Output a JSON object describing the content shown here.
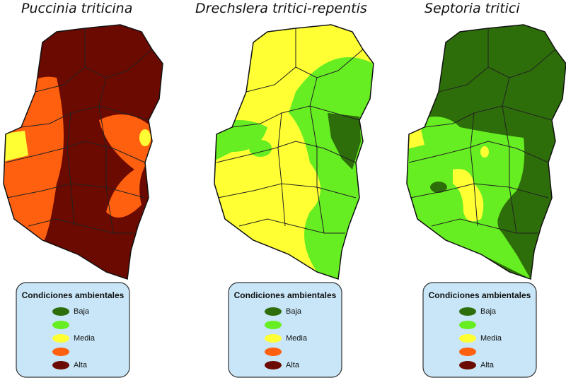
{
  "panels": [
    {
      "title": "Puccinia triticina",
      "legend": {
        "title": "Condiciones ambientales",
        "items": [
          "Baja",
          "Media",
          "Alta"
        ]
      }
    },
    {
      "title": "Drechslera tritici-repentis",
      "legend": {
        "title": "Condiciones ambientales",
        "items": [
          "Baja",
          "Media",
          "Alta"
        ]
      }
    },
    {
      "title": "Septoria tritici",
      "legend": {
        "title": "Condiciones ambientales",
        "items": [
          "Baja",
          "Media",
          "Alta"
        ]
      }
    }
  ]
}
